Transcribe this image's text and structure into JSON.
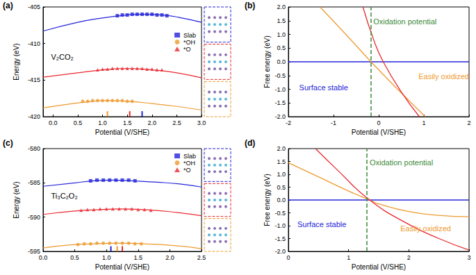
{
  "chart_data": [
    {
      "type": "scatter",
      "title": "(a)",
      "x_label": "Potential (V/SHE)",
      "y_label": "Energy (eV)",
      "xlim": [
        -0.2,
        3.0
      ],
      "xticks": [
        {
          "value": 0,
          "label": "0.0"
        },
        0.5,
        {
          "value": 1,
          "label": "1.0"
        },
        1.5,
        {
          "value": 2,
          "label": "2.0"
        },
        2.5,
        {
          "value": 3,
          "label": "3.0"
        }
      ],
      "ylim": [
        -420,
        -405
      ],
      "yticks": [
        -420,
        -415,
        -410,
        -405
      ],
      "grid": false,
      "legend": "upper right",
      "annotations": [
        "V₂CO₂"
      ],
      "series": [
        {
          "name": "Slab",
          "color": "#2323d8",
          "marker": "square",
          "x": [
            1.3,
            1.4,
            1.5,
            1.6,
            1.7,
            1.8,
            1.9,
            2.0,
            2.1,
            2.2,
            2.3
          ],
          "values": [
            -406.2,
            -406.1,
            -406.1,
            -406.0,
            -406.0,
            -406.0,
            -406.0,
            -406.0,
            -406.1,
            -406.1,
            -406.2
          ],
          "fit_x": [
            -0.2,
            0.5,
            1.0,
            1.5,
            1.8,
            2.2,
            2.6,
            3.0
          ],
          "fit_values": [
            -408.3,
            -407.1,
            -406.5,
            -406.1,
            -406.0,
            -406.1,
            -406.5,
            -407.1
          ],
          "pzc": 1.8
        },
        {
          "name": "*OH",
          "color": "#ee9a2e",
          "marker": "circle",
          "x": [
            0.6,
            0.7,
            0.8,
            0.9,
            1.0,
            1.1,
            1.2,
            1.3,
            1.4,
            1.5,
            1.6
          ],
          "values": [
            -417.9,
            -417.9,
            -417.8,
            -417.8,
            -417.8,
            -417.8,
            -417.8,
            -417.8,
            -417.8,
            -417.9,
            -417.9
          ],
          "fit_x": [
            -0.2,
            0.3,
            0.8,
            1.1,
            1.5,
            2.0,
            2.5,
            3.0
          ],
          "fit_values": [
            -418.8,
            -418.3,
            -417.9,
            -417.8,
            -417.9,
            -418.2,
            -418.6,
            -419.1
          ],
          "pzc": 1.1
        },
        {
          "name": "*O",
          "color": "#e8282e",
          "marker": "triangle",
          "x": [
            0.9,
            1.0,
            1.1,
            1.2,
            1.3,
            1.4,
            1.5,
            1.6,
            1.7,
            1.8,
            1.9,
            2.0,
            2.1,
            2.2
          ],
          "values": [
            -413.6,
            -413.5,
            -413.5,
            -413.4,
            -413.4,
            -413.4,
            -413.4,
            -413.4,
            -413.4,
            -413.4,
            -413.5,
            -413.5,
            -413.6,
            -413.6
          ],
          "fit_x": [
            -0.2,
            0.5,
            1.0,
            1.5,
            2.0,
            2.5,
            3.0
          ],
          "fit_values": [
            -414.6,
            -414.0,
            -413.6,
            -413.4,
            -413.6,
            -414.0,
            -414.7
          ],
          "pzc": 1.55
        }
      ]
    },
    {
      "type": "line",
      "title": "(b)",
      "x_label": "Potential (V/SHE)",
      "y_label": "Free energy (eV)",
      "xlim": [
        -2,
        2
      ],
      "xticks": [
        -2,
        -1,
        0,
        1,
        2
      ],
      "ylim": [
        -2,
        2
      ],
      "yticks": [
        {
          "value": -2,
          "label": "-2.0"
        },
        {
          "value": -1.5,
          "label": "-1.5"
        },
        {
          "value": -1,
          "label": "-1.0"
        },
        -0.5,
        {
          "value": 0,
          "label": "0.0"
        },
        0.5,
        {
          "value": 1,
          "label": "1.0"
        },
        1.5,
        {
          "value": 2,
          "label": "2.0"
        }
      ],
      "grid": false,
      "annotations": [
        "Oxidation potential",
        "Surface stable",
        "Easily oxidized"
      ],
      "reference_line": {
        "x": -0.18,
        "color": "#3a8a3a",
        "line_style": "dashed"
      },
      "series": [
        {
          "color": "#2323d8",
          "line_style": "solid",
          "x": [
            -2,
            2
          ],
          "values": [
            0,
            0
          ]
        },
        {
          "color": "#ee9a2e",
          "line_style": "solid",
          "x": [
            -1.3,
            -0.7,
            -0.17,
            0.4,
            1.03
          ],
          "values": [
            2.0,
            0.95,
            0,
            -0.97,
            -2.0
          ]
        },
        {
          "color": "#e8282e",
          "line_style": "solid",
          "x": [
            -0.35,
            -0.1,
            0.1,
            0.5,
            0.9
          ],
          "values": [
            2.0,
            0.75,
            0,
            -1.1,
            -2.0
          ]
        }
      ]
    },
    {
      "type": "scatter",
      "title": "(c)",
      "x_label": "Potential (V/SHE)",
      "y_label": "Energy (eV)",
      "xlim": [
        0,
        2.5
      ],
      "xticks": [
        {
          "value": 0,
          "label": "0.0"
        },
        0.5,
        {
          "value": 1,
          "label": "1.0"
        },
        1.5,
        {
          "value": 2,
          "label": "2.0"
        },
        2.5
      ],
      "ylim": [
        -595,
        -580
      ],
      "yticks": [
        -595,
        -590,
        -585,
        -580
      ],
      "grid": false,
      "legend": "upper right",
      "annotations": [
        "Ti₃C₂O₂"
      ],
      "series": [
        {
          "name": "Slab",
          "color": "#2323d8",
          "marker": "square",
          "x": [
            0.75,
            0.85,
            0.95,
            1.05,
            1.15,
            1.25,
            1.35,
            1.45
          ],
          "values": [
            -584.7,
            -584.6,
            -584.6,
            -584.6,
            -584.6,
            -584.6,
            -584.6,
            -584.7
          ],
          "fit_x": [
            0,
            0.5,
            0.8,
            1.1,
            1.4,
            1.8,
            2.2,
            2.5
          ],
          "fit_values": [
            -585.5,
            -585.0,
            -584.7,
            -584.6,
            -584.7,
            -584.9,
            -585.2,
            -585.6
          ],
          "pzc": 1.07
        },
        {
          "name": "*OH",
          "color": "#ee9a2e",
          "marker": "circle",
          "x": [
            0.55,
            0.65,
            0.75,
            0.85,
            0.95,
            1.05,
            1.15,
            1.25,
            1.35,
            1.45,
            1.55
          ],
          "values": [
            -594.0,
            -593.9,
            -593.9,
            -593.8,
            -593.8,
            -593.8,
            -593.8,
            -593.8,
            -593.8,
            -593.9,
            -593.9
          ],
          "fit_x": [
            0,
            0.5,
            0.8,
            1.2,
            1.6,
            2.0,
            2.5
          ],
          "fit_values": [
            -594.5,
            -594.0,
            -593.9,
            -593.8,
            -593.9,
            -594.1,
            -594.6
          ],
          "pzc": 1.17
        },
        {
          "name": "*O",
          "color": "#e8282e",
          "marker": "triangle",
          "x": [
            0.6,
            0.7,
            0.8,
            0.9,
            1.0,
            1.1,
            1.2,
            1.3,
            1.4,
            1.5,
            1.6,
            1.7
          ],
          "values": [
            -589.0,
            -588.9,
            -588.9,
            -588.8,
            -588.8,
            -588.8,
            -588.8,
            -588.8,
            -588.8,
            -588.9,
            -588.9,
            -589.0
          ],
          "fit_x": [
            0,
            0.5,
            0.9,
            1.2,
            1.6,
            2.0,
            2.5
          ],
          "fit_values": [
            -589.6,
            -589.1,
            -588.9,
            -588.8,
            -588.9,
            -589.2,
            -589.8
          ],
          "pzc": 1.25
        }
      ]
    },
    {
      "type": "line",
      "title": "(d)",
      "x_label": "Potential (V/SHE)",
      "y_label": "Free energy (eV)",
      "xlim": [
        0,
        3
      ],
      "xticks": [
        0,
        1,
        2,
        3
      ],
      "ylim": [
        -2,
        2
      ],
      "yticks": [
        {
          "value": -2,
          "label": "-2.0"
        },
        {
          "value": -1.5,
          "label": "-1.5"
        },
        {
          "value": -1,
          "label": "-1.0"
        },
        -0.5,
        {
          "value": 0,
          "label": "0.0"
        },
        0.5,
        {
          "value": 1,
          "label": "1.0"
        },
        1.5,
        {
          "value": 2,
          "label": "2.0"
        }
      ],
      "grid": false,
      "annotations": [
        "Oxidation potential",
        "Surface stable",
        "Easily oxidized"
      ],
      "reference_line": {
        "x": 1.3,
        "color": "#3a8a3a",
        "line_style": "dashed"
      },
      "series": [
        {
          "color": "#2323d8",
          "line_style": "solid",
          "x": [
            0,
            3
          ],
          "values": [
            0,
            0
          ]
        },
        {
          "color": "#ee9a2e",
          "line_style": "solid",
          "x": [
            0,
            0.5,
            1.0,
            1.35,
            1.5,
            2.0,
            2.5,
            3.0
          ],
          "values": [
            1.45,
            0.9,
            0.35,
            0,
            -0.15,
            -0.45,
            -0.6,
            -0.65
          ]
        },
        {
          "color": "#e8282e",
          "line_style": "solid",
          "x": [
            0.45,
            0.8,
            1.35,
            2.0,
            2.5,
            3.0
          ],
          "values": [
            2.0,
            1.2,
            0,
            -0.95,
            -1.5,
            -1.95
          ]
        }
      ]
    }
  ]
}
